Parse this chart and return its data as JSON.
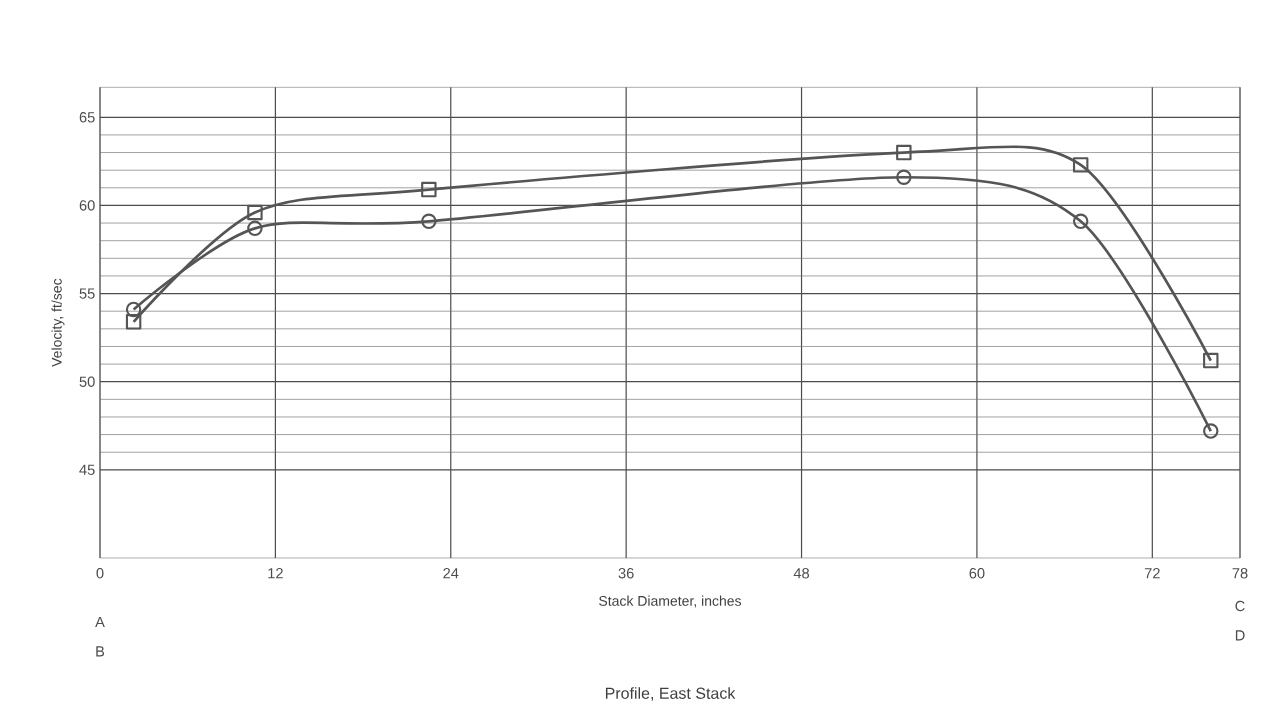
{
  "chart_data": {
    "type": "line",
    "title": "Profile, East Stack",
    "xlabel": "Stack Diameter, inches",
    "ylabel": "Velocity, ft/sec",
    "x": [
      2.3,
      10.6,
      22.5,
      55.0,
      67.1,
      76.0
    ],
    "series": [
      {
        "color": "#555555",
        "marker": "circle",
        "values": [
          54.1,
          58.7,
          59.1,
          61.6,
          59.1,
          47.2
        ]
      },
      {
        "color": "#555555",
        "marker": "square",
        "values": [
          53.4,
          59.6,
          60.9,
          63.0,
          62.3,
          51.2
        ]
      }
    ],
    "xlim": [
      0,
      78
    ],
    "xticks": [
      0,
      12,
      24,
      36,
      48,
      60,
      72,
      78
    ],
    "ylim": [
      40,
      66.7
    ],
    "yticks": [
      45,
      50,
      55,
      60,
      65
    ],
    "grid": true,
    "line_style": "solid",
    "annotations": [
      "A",
      "B",
      "C",
      "D"
    ]
  }
}
